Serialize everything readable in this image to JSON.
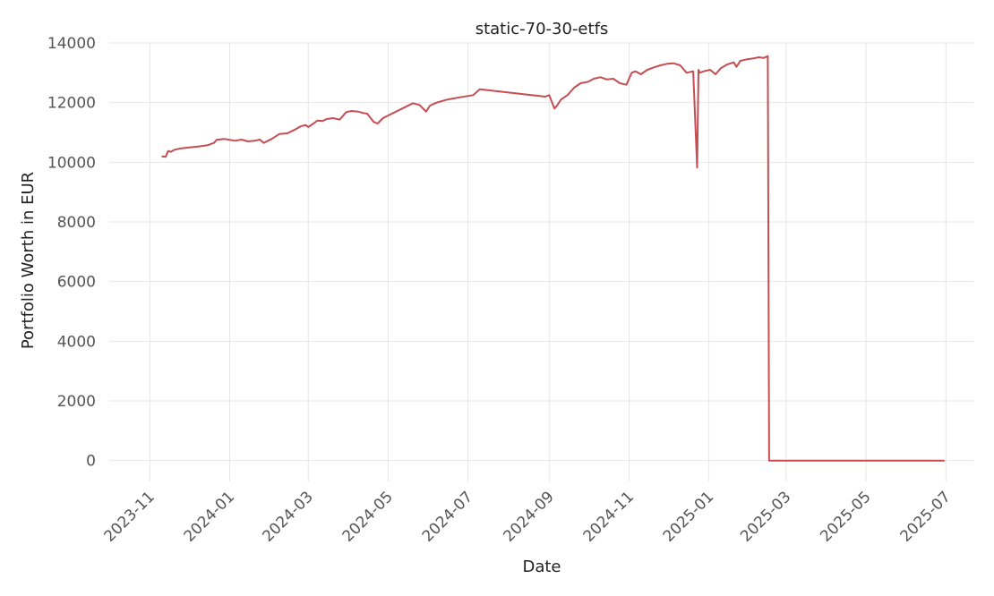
{
  "chart_data": {
    "type": "line",
    "title": "static-70-30-etfs",
    "xlabel": "Date",
    "ylabel": "Portfolio Worth in EUR",
    "ylim": [
      -700,
      14300
    ],
    "xlim": [
      "2023-10-01",
      "2025-07-22"
    ],
    "grid": true,
    "color": "#c44e52",
    "x_ticks": [
      "2023-11-01",
      "2024-01-01",
      "2024-03-01",
      "2024-05-01",
      "2024-07-01",
      "2024-09-01",
      "2024-11-01",
      "2025-01-01",
      "2025-03-01",
      "2025-05-01",
      "2025-07-01"
    ],
    "x_tick_labels": [
      "2023-11",
      "2024-01",
      "2024-03",
      "2024-05",
      "2024-07",
      "2024-09",
      "2024-11",
      "2025-01",
      "2025-03",
      "2025-05",
      "2025-07"
    ],
    "y_ticks": [
      0,
      2000,
      4000,
      6000,
      8000,
      10000,
      12000,
      14000
    ],
    "series": [
      {
        "x": [
          "2023-11-10",
          "2023-11-13",
          "2023-11-15",
          "2023-11-17",
          "2023-11-20",
          "2023-11-24",
          "2023-12-01",
          "2023-12-08",
          "2023-12-15",
          "2023-12-20",
          "2023-12-22",
          "2023-12-28",
          "2024-01-05",
          "2024-01-10",
          "2024-01-15",
          "2024-01-20",
          "2024-01-24",
          "2024-01-27",
          "2024-02-02",
          "2024-02-08",
          "2024-02-14",
          "2024-02-20",
          "2024-02-24",
          "2024-02-28",
          "2024-03-01",
          "2024-03-05",
          "2024-03-08",
          "2024-03-12",
          "2024-03-15",
          "2024-03-20",
          "2024-03-25",
          "2024-03-30",
          "2024-04-03",
          "2024-04-08",
          "2024-04-12",
          "2024-04-15",
          "2024-04-20",
          "2024-04-23",
          "2024-04-27",
          "2024-05-20",
          "2024-05-25",
          "2024-05-30",
          "2024-06-02",
          "2024-06-07",
          "2024-06-15",
          "2024-06-25",
          "2024-07-05",
          "2024-07-10",
          "2024-08-29",
          "2024-09-01",
          "2024-09-05",
          "2024-09-07",
          "2024-09-10",
          "2024-09-15",
          "2024-09-20",
          "2024-09-25",
          "2024-10-01",
          "2024-10-05",
          "2024-10-10",
          "2024-10-15",
          "2024-10-20",
          "2024-10-25",
          "2024-10-30",
          "2024-11-03",
          "2024-11-06",
          "2024-11-10",
          "2024-11-15",
          "2024-11-20",
          "2024-11-25",
          "2024-11-30",
          "2024-12-05",
          "2024-12-10",
          "2024-12-15",
          "2024-12-20",
          "2024-12-23",
          "2024-12-24",
          "2024-12-25",
          "2024-12-28",
          "2025-01-02",
          "2025-01-06",
          "2025-01-10",
          "2025-01-15",
          "2025-01-20",
          "2025-01-22",
          "2025-01-25",
          "2025-01-30",
          "2025-02-04",
          "2025-02-08",
          "2025-02-12",
          "2025-02-15",
          "2025-02-16",
          "2025-06-30"
        ],
        "values": [
          10200,
          10180,
          10380,
          10350,
          10420,
          10460,
          10500,
          10530,
          10570,
          10650,
          10750,
          10780,
          10720,
          10760,
          10700,
          10720,
          10760,
          10650,
          10780,
          10950,
          10970,
          11100,
          11200,
          11250,
          11180,
          11300,
          11400,
          11380,
          11450,
          11480,
          11430,
          11680,
          11720,
          11700,
          11650,
          11630,
          11350,
          11300,
          11480,
          11980,
          11920,
          11700,
          11900,
          12000,
          12100,
          12180,
          12250,
          12450,
          12200,
          12250,
          11800,
          11900,
          12100,
          12250,
          12500,
          12650,
          12700,
          12800,
          12850,
          12780,
          12800,
          12650,
          12600,
          13000,
          13050,
          12950,
          13100,
          13180,
          13250,
          13300,
          13320,
          13250,
          13000,
          13050,
          9820,
          13100,
          13000,
          13050,
          13100,
          12950,
          13150,
          13280,
          13350,
          13200,
          13400,
          13450,
          13480,
          13520,
          13500,
          13560,
          0,
          0
        ]
      }
    ]
  }
}
